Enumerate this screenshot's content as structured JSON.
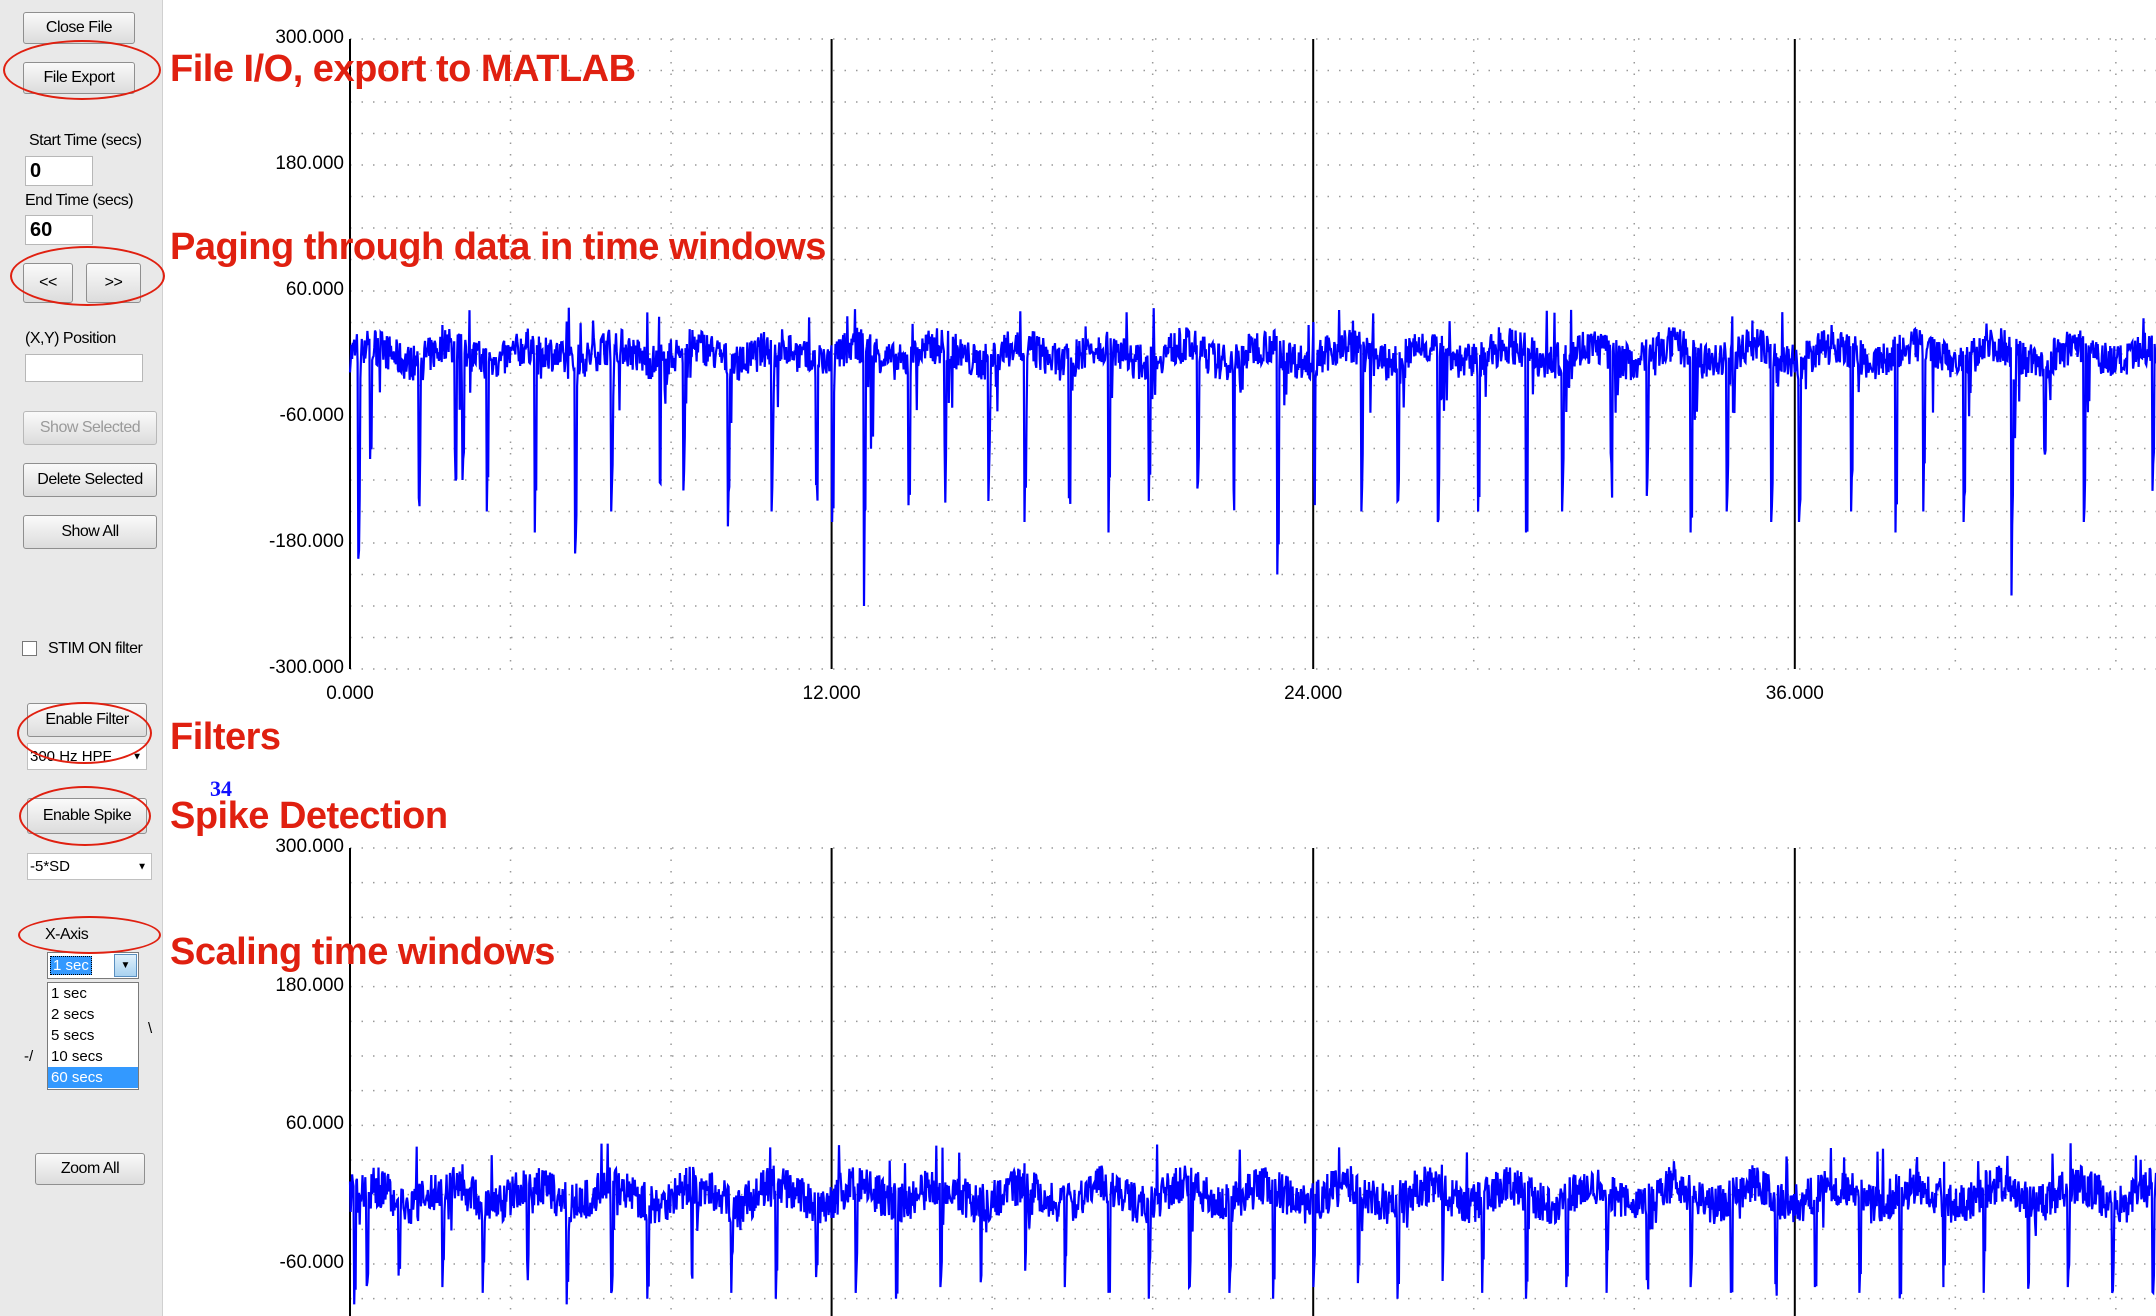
{
  "panel": {
    "close_file": "Close File",
    "file_export": "File Export",
    "start_time_label": "Start Time (secs)",
    "start_time_value": "0",
    "end_time_label": "End Time (secs)",
    "end_time_value": "60",
    "prev_button": "<<",
    "next_button": ">>",
    "xy_position_label": "(X,Y) Position",
    "xy_position_value": "",
    "show_selected": "Show Selected",
    "delete_selected": "Delete Selected",
    "show_all": "Show All",
    "stim_filter_label": "STIM ON filter",
    "enable_filter": "Enable Filter",
    "filter_select": "300 Hz HPF",
    "enable_spike": "Enable Spike",
    "spike_threshold_select": "-5*SD",
    "xaxis_label": "X-Axis",
    "xaxis_selected": "1 sec",
    "xaxis_options": [
      "1 sec",
      "2 secs",
      "5 secs",
      "10 secs",
      "60 secs"
    ],
    "zoom_all": "Zoom All"
  },
  "annotations": {
    "file_io": "File I/O, export to MATLAB",
    "paging": "Paging through data in time windows",
    "filters": "Filters",
    "spike_detection": "Spike Detection",
    "scaling": "Scaling time windows"
  },
  "spike_count": "34",
  "colors": {
    "signal": "#0000ff",
    "annotation": "#e02010",
    "panel_bg": "#e9e9e9"
  },
  "chart_data": [
    {
      "type": "line",
      "title": "",
      "xlabel": "",
      "ylabel": "",
      "y_ticks": [
        "300.000",
        "180.000",
        "60.000",
        "-60.000",
        "-180.000",
        "-300.000"
      ],
      "x_ticks": [
        "0.000",
        "12.000",
        "24.000",
        "36.000"
      ],
      "ylim": [
        -300,
        300
      ],
      "xlim": [
        0,
        45
      ],
      "grid": true,
      "series": [
        {
          "baseline": 0,
          "noise_band": [
            -25,
            25
          ],
          "spike_times": [
            0.2,
            0.5,
            1.7,
            2.6,
            2.8,
            3.4,
            4.6,
            5.6,
            6.5,
            7.7,
            8.3,
            9.4,
            10.5,
            11.6,
            12.0,
            12.8,
            13.9,
            14.8,
            15.9,
            16.8,
            17.9,
            18.9,
            19.9,
            21.1,
            22.0,
            23.1,
            24.0,
            25.2,
            26.1,
            27.1,
            28.1,
            29.3,
            30.2,
            31.4,
            32.3,
            33.4,
            34.3,
            35.4,
            36.1,
            37.4,
            38.5,
            39.2,
            40.2,
            41.4,
            42.2,
            43.2,
            44.9
          ],
          "spike_min": [
            -195,
            -100,
            -150,
            -140,
            -120,
            -150,
            -170,
            -190,
            -150,
            -160,
            -130,
            -170,
            -150,
            -150,
            -160,
            -240,
            -150,
            -150,
            -140,
            -160,
            -150,
            -170,
            -140,
            -150,
            -160,
            -210,
            -160,
            -150,
            -140,
            -160,
            -150,
            -170,
            -150,
            -160,
            -140,
            -170,
            -150,
            -160,
            -160,
            -150,
            -170,
            -150,
            -160,
            -230,
            -150,
            -160,
            -170
          ]
        }
      ]
    },
    {
      "type": "line",
      "title": "",
      "xlabel": "",
      "ylabel": "",
      "y_ticks": [
        "300.000",
        "180.000",
        "60.000",
        "-60.000"
      ],
      "x_ticks": [],
      "ylim": [
        -105,
        300
      ],
      "xlim": [
        0,
        45
      ],
      "grid": true,
      "series": [
        {
          "baseline": 0,
          "noise_band": [
            -25,
            25
          ],
          "spike_times": [
            0.1,
            0.4,
            1.2,
            2.3,
            3.3,
            4.4,
            5.4,
            6.5,
            7.4,
            8.5,
            9.5,
            10.6,
            11.6,
            12.6,
            13.6,
            14.7,
            15.7,
            16.8,
            17.8,
            18.9,
            19.9,
            20.9,
            21.9,
            23.0,
            24.0,
            25.1,
            26.1,
            27.2,
            28.2,
            29.3,
            30.3,
            31.3,
            32.3,
            33.4,
            34.4,
            35.5,
            36.5,
            37.6,
            38.6,
            39.7,
            40.7,
            41.8,
            42.8,
            43.9,
            44.9
          ],
          "spike_min": [
            -95,
            -90,
            -70,
            -80,
            -85,
            -75,
            -95,
            -85,
            -90,
            -80,
            -85,
            -90,
            -80,
            -85,
            -90,
            -80,
            -85,
            -90,
            -80,
            -85,
            -90,
            -80,
            -85,
            -90,
            -80,
            -85,
            -90,
            -80,
            -85,
            -90,
            -80,
            -85,
            -90,
            -80,
            -85,
            -90,
            -80,
            -85,
            -90,
            -80,
            -85,
            -90,
            -80,
            -85,
            -90
          ]
        }
      ]
    }
  ]
}
